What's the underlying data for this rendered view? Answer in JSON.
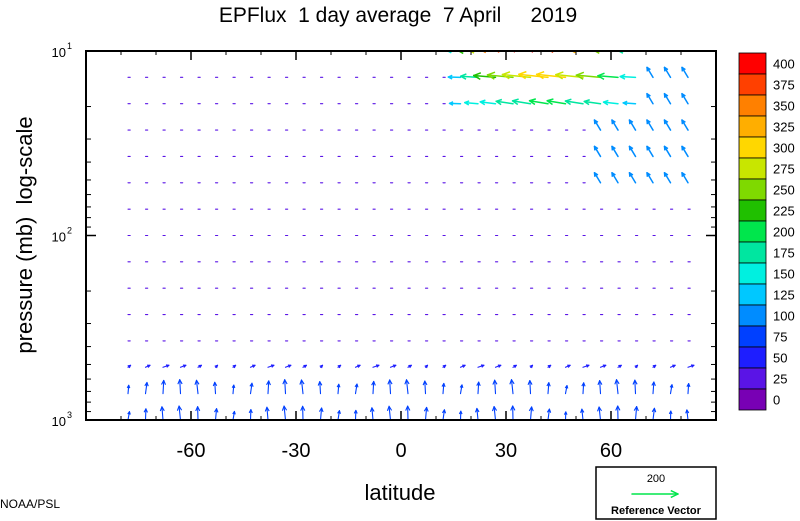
{
  "chart_data": {
    "type": "vector-field",
    "title": "EPFlux  1 day average  7 April     2019",
    "xlabel": "latitude",
    "ylabel": "pressure (mb)  log-scale",
    "x_range": [
      -90,
      90
    ],
    "y_range_mb": [
      1000,
      10
    ],
    "y_scale": "log",
    "x_ticks": [
      -60,
      -30,
      0,
      30,
      60
    ],
    "x_tick_labels": [
      "-60",
      "-30",
      "0",
      "30",
      "60"
    ],
    "y_ticks": [
      {
        "value": 10,
        "base": "10",
        "exp": "1"
      },
      {
        "value": 100,
        "base": "10",
        "exp": "2"
      },
      {
        "value": 1000,
        "base": "10",
        "exp": "3"
      }
    ],
    "colorbar": {
      "levels": [
        400,
        375,
        350,
        325,
        300,
        275,
        250,
        225,
        200,
        175,
        150,
        125,
        100,
        75,
        50,
        25,
        0
      ],
      "colors": [
        "#ff0000",
        "#ff4000",
        "#ff8000",
        "#ffae00",
        "#ffd700",
        "#c8e600",
        "#7fd900",
        "#20c000",
        "#00e64c",
        "#00e6a0",
        "#00f0e0",
        "#00c8ff",
        "#008cff",
        "#0040ff",
        "#1e1eff",
        "#5a14e6",
        "#7800b4"
      ]
    },
    "reference_vector": {
      "magnitude": 200,
      "label": "200",
      "caption": "Reference Vector"
    },
    "strong_flux_region": "upper stratosphere, latitudes 20N–70N, 10–30 mb, magnitudes up to ~400, directed equatorward",
    "grid": false
  },
  "credit": "NOAA/PSL"
}
